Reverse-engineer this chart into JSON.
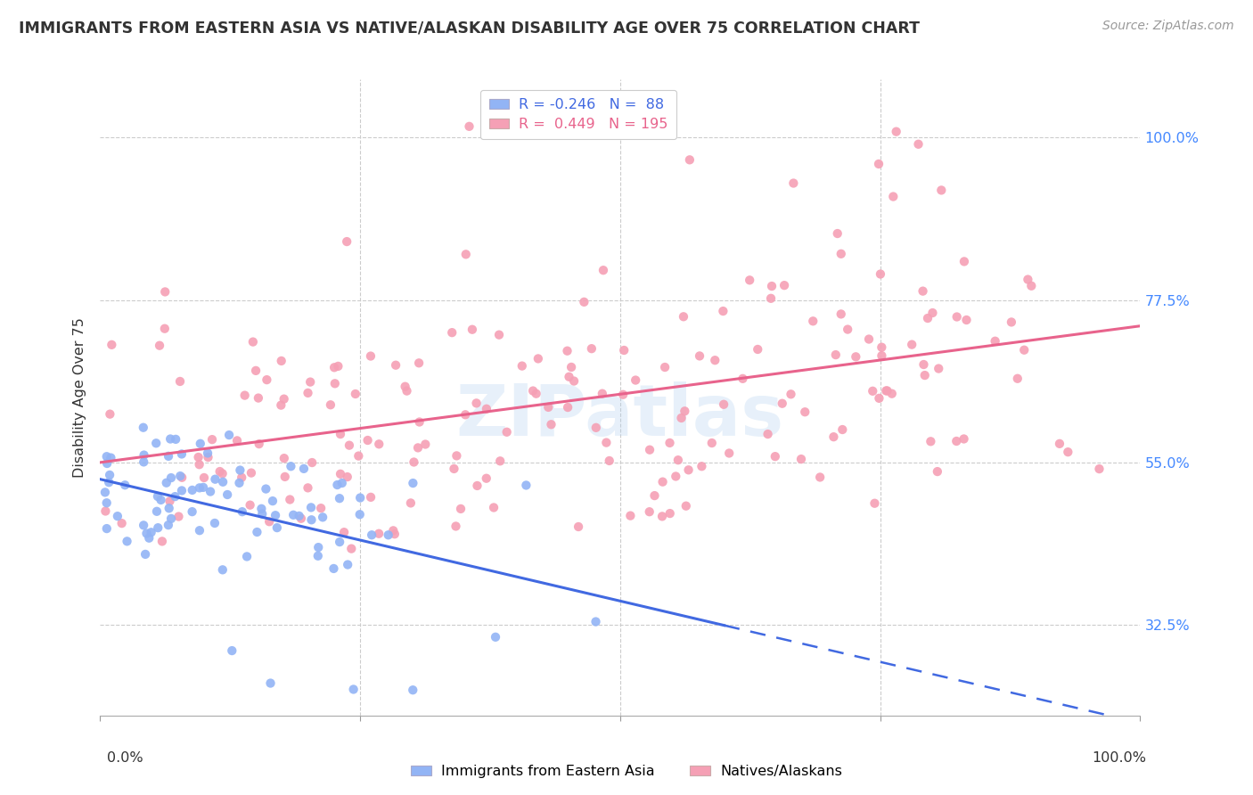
{
  "title": "IMMIGRANTS FROM EASTERN ASIA VS NATIVE/ALASKAN DISABILITY AGE OVER 75 CORRELATION CHART",
  "source": "Source: ZipAtlas.com",
  "ylabel": "Disability Age Over 75",
  "ytick_labels": [
    "32.5%",
    "55.0%",
    "77.5%",
    "100.0%"
  ],
  "ytick_vals": [
    0.325,
    0.55,
    0.775,
    1.0
  ],
  "blue_R": -0.246,
  "blue_N": 88,
  "pink_R": 0.449,
  "pink_N": 195,
  "blue_color": "#92B4F5",
  "blue_line_color": "#4169E1",
  "pink_color": "#F5A0B5",
  "pink_line_color": "#E8638C",
  "blue_label": "Immigrants from Eastern Asia",
  "pink_label": "Natives/Alaskans",
  "watermark": "ZIPatlas",
  "xmin": 0.0,
  "xmax": 1.0,
  "ymin": 0.2,
  "ymax": 1.08,
  "seed": 7
}
